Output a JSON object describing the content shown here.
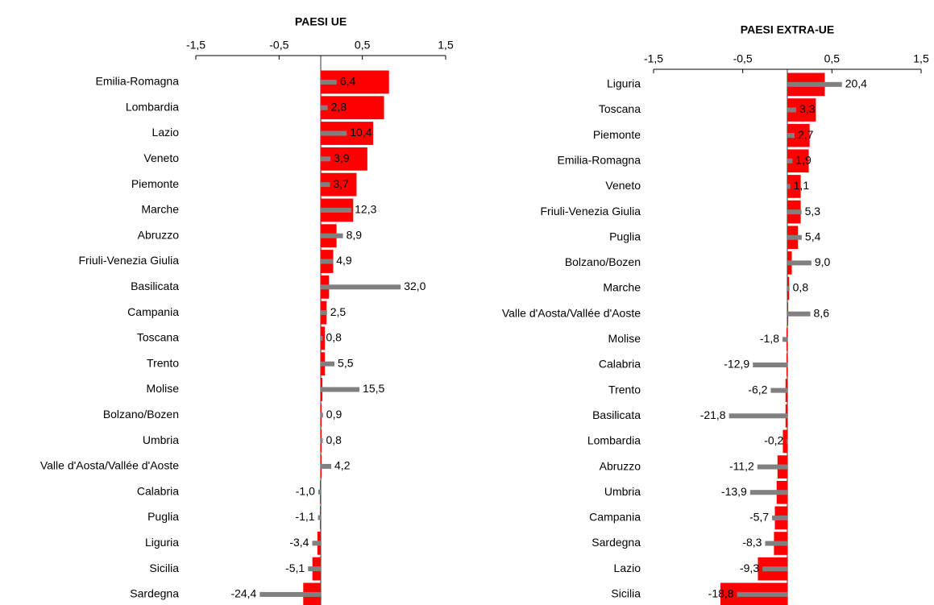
{
  "chart_data": [
    {
      "type": "bar",
      "orientation": "horizontal",
      "title": "PAESI UE",
      "categories": [
        "Emilia-Romagna",
        "Lombardia",
        "Lazio",
        "Veneto",
        "Piemonte",
        "Marche",
        "Abruzzo",
        "Friuli-Venezia Giulia",
        "Basilicata",
        "Campania",
        "Toscana",
        "Trento",
        "Molise",
        "Bolzano/Bozen",
        "Umbria",
        "Valle d'Aosta/Vallée d'Aoste",
        "Calabria",
        "Puglia",
        "Liguria",
        "Sicilia",
        "Sardegna"
      ],
      "xlim": [
        -1.5,
        1.5
      ],
      "xticks": [
        {
          "value": -1.5,
          "label": "-1,5"
        },
        {
          "value": -0.5,
          "label": "-0,5"
        },
        {
          "value": 0.5,
          "label": "0,5"
        },
        {
          "value": 1.5,
          "label": "1,5"
        }
      ],
      "x2lim": [
        -50,
        50
      ],
      "series": [
        {
          "color": "#ff0000",
          "values": [
            0.82,
            0.76,
            0.63,
            0.56,
            0.43,
            0.39,
            0.19,
            0.15,
            0.1,
            0.07,
            0.05,
            0.05,
            0.02,
            0.01,
            0.01,
            0.01,
            -0.01,
            -0.01,
            -0.04,
            -0.1,
            -0.21
          ]
        },
        {
          "color": "#808080",
          "axis": "x2",
          "values": [
            6.4,
            2.8,
            10.4,
            3.9,
            3.7,
            12.3,
            8.9,
            4.9,
            32.0,
            2.5,
            0.8,
            5.5,
            15.5,
            0.9,
            0.8,
            4.2,
            -1.0,
            -1.1,
            -3.4,
            -5.1,
            -24.4
          ],
          "value_labels": [
            "6,4",
            "2,8",
            "10,4",
            "3,9",
            "3,7",
            "12,3",
            "8,9",
            "4,9",
            "32,0",
            "2,5",
            "0,8",
            "5,5",
            "15,5",
            "0,9",
            "0,8",
            "4,2",
            "-1,0",
            "-1,1",
            "-3,4",
            "-5,1",
            "-24,4"
          ]
        }
      ]
    },
    {
      "type": "bar",
      "orientation": "horizontal",
      "title": "PAESI EXTRA-UE",
      "categories": [
        "Liguria",
        "Toscana",
        "Piemonte",
        "Emilia-Romagna",
        "Veneto",
        "Friuli-Venezia Giulia",
        "Puglia",
        "Bolzano/Bozen",
        "Marche",
        "Valle d'Aosta/Vallée d'Aoste",
        "Molise",
        "Calabria",
        "Trento",
        "Basilicata",
        "Lombardia",
        "Abruzzo",
        "Umbria",
        "Campania",
        "Sardegna",
        "Lazio",
        "Sicilia"
      ],
      "xlim": [
        -1.5,
        1.5
      ],
      "xticks": [
        {
          "value": -1.5,
          "label": "-1,5"
        },
        {
          "value": -0.5,
          "label": "-0,5"
        },
        {
          "value": 0.5,
          "label": "0,5"
        },
        {
          "value": 1.5,
          "label": "1,5"
        }
      ],
      "x2lim": [
        -50,
        50
      ],
      "series": [
        {
          "color": "#ff0000",
          "values": [
            0.42,
            0.32,
            0.25,
            0.24,
            0.15,
            0.15,
            0.12,
            0.05,
            0.02,
            0.01,
            -0.01,
            -0.01,
            -0.02,
            -0.02,
            -0.05,
            -0.11,
            -0.12,
            -0.14,
            -0.15,
            -0.33,
            -0.75
          ]
        },
        {
          "color": "#808080",
          "axis": "x2",
          "values": [
            20.4,
            3.3,
            2.7,
            1.9,
            1.1,
            5.3,
            5.4,
            9.0,
            0.8,
            8.6,
            -1.8,
            -12.9,
            -6.2,
            -21.8,
            -0.2,
            -11.2,
            -13.9,
            -5.7,
            -8.3,
            -9.3,
            -18.8
          ],
          "value_labels": [
            "20,4",
            "3,3",
            "2,7",
            "1,9",
            "1,1",
            "5,3",
            "5,4",
            "9,0",
            "0,8",
            "8,6",
            "-1,8",
            "-12,9",
            "-6,2",
            "-21,8",
            "-0,2",
            "-11,2",
            "-13,9",
            "-5,7",
            "-8,3",
            "-9,3",
            "-18,8"
          ]
        }
      ]
    }
  ]
}
